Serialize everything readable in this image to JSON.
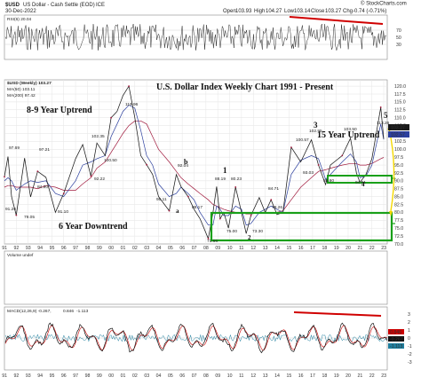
{
  "header": {
    "symbol": "$USD",
    "symbol_desc": "US Dollar - Cash Settle (EOD)",
    "exchange": "ICE",
    "date": "30-Dec-2022",
    "open_label": "Open",
    "open_value": "103.93",
    "high_label": "High",
    "high_value": "104.27",
    "low_label": "Low",
    "low_value": "103.14",
    "close_label": "Close",
    "close_value": "103.27",
    "chg_label": "Chg",
    "chg_value": "-0.74 (-0.71%)",
    "watermark": "© StockCharts.com"
  },
  "rsi_panel": {
    "legend": "RSI(6) 20.04",
    "levels": [
      "70",
      "50",
      "30"
    ]
  },
  "price_panel": {
    "legend_symbol": "$USD (Weekly) 103.27",
    "legend_ma50": "MA(50) 103.11",
    "legend_ma200": "MA(200) 97.42",
    "title": "U.S. Dollar Index Weekly Chart 1991 - Present",
    "annotations": {
      "uptrend1": "8-9 Year Uptrend",
      "downtrend": "6 Year Downtrend",
      "uptrend2": "15 Year Uptrend",
      "wave_b": "b",
      "wave_a": "a",
      "wave_1": "1",
      "wave_2": "2",
      "wave_3": "3",
      "wave_4": "4",
      "wave_5": "5"
    },
    "price_labels": [
      "97.69",
      "79.05",
      "91.26",
      "97.21",
      "84.90",
      "91.10",
      "92.22",
      "102.35",
      "100.50",
      "119.96",
      "95.11",
      "92.04",
      "88.17",
      "88.19",
      "80.23",
      "75.00",
      "71.66",
      "73.30",
      "84.71",
      "79.26",
      "100.57",
      "102.95",
      "93.03",
      "103.50",
      "94.61",
      "88.80",
      "113.26"
    ],
    "right_axis": [
      "120.0",
      "117.5",
      "115.0",
      "112.5",
      "110.0",
      "107.5",
      "105.0",
      "102.5",
      "100.0",
      "97.5",
      "95.0",
      "92.5",
      "90.0",
      "87.5",
      "85.0",
      "82.5",
      "80.0",
      "77.5",
      "75.0",
      "72.5",
      "70.0"
    ],
    "right_tags": [
      "103.27",
      "102.57"
    ]
  },
  "volume_panel": {
    "legend": "Volume undef"
  },
  "macd_panel": {
    "legend": "MACD(12,26,9) -0.267,",
    "signal": "0.846",
    "hist": "-1.113",
    "right_axis": [
      "3",
      "2",
      "1",
      "0",
      "-1",
      "-2",
      "-3"
    ],
    "right_tags": [
      "0.846",
      "-0.267",
      "-1.113"
    ]
  },
  "x_axis": [
    "91",
    "92",
    "93",
    "94",
    "95",
    "96",
    "97",
    "98",
    "99",
    "00",
    "01",
    "02",
    "03",
    "04",
    "05",
    "06",
    "07",
    "08",
    "09",
    "10",
    "11",
    "12",
    "13",
    "14",
    "15",
    "16",
    "17",
    "18",
    "19",
    "20",
    "21",
    "22",
    "23"
  ],
  "chart_data": {
    "type": "line",
    "title": "U.S. Dollar Index Weekly Chart 1991 - Present",
    "xlabel": "",
    "ylabel": "",
    "ylim": [
      70,
      122
    ],
    "x": [
      1991.0,
      1991.3,
      1991.6,
      1992.0,
      1992.7,
      1993.2,
      1993.8,
      1994.5,
      1995.3,
      1996.0,
      1997.0,
      1997.6,
      1998.3,
      1998.8,
      1999.5,
      2000.0,
      2000.5,
      2001.0,
      2001.5,
      2002.0,
      2002.5,
      2003.0,
      2003.5,
      2004.0,
      2004.9,
      2005.5,
      2005.9,
      2006.5,
      2007.0,
      2007.5,
      2008.2,
      2008.6,
      2008.9,
      2009.2,
      2009.5,
      2009.9,
      2010.5,
      2011.0,
      2011.4,
      2011.8,
      2012.5,
      2013.0,
      2013.5,
      2014.0,
      2014.5,
      2015.2,
      2016.0,
      2016.9,
      2017.5,
      2018.1,
      2018.5,
      2019.5,
      2020.2,
      2020.7,
      2021.0,
      2021.5,
      2022.0,
      2022.75,
      2023.0
    ],
    "series": [
      {
        "name": "$USD (Weekly) 103.27",
        "values": [
          91.3,
          97.7,
          85.0,
          79.1,
          97.2,
          84.9,
          93.0,
          91.1,
          80.0,
          86.0,
          97.0,
          101.5,
          91.5,
          102.0,
          98.0,
          110.0,
          112.0,
          117.0,
          120.0,
          110.0,
          98.0,
          95.1,
          92.0,
          85.0,
          80.5,
          92.0,
          88.2,
          85.0,
          81.0,
          78.0,
          71.7,
          80.0,
          88.2,
          78.0,
          80.0,
          75.0,
          88.0,
          80.0,
          73.3,
          79.0,
          84.7,
          80.0,
          84.0,
          79.3,
          80.0,
          100.6,
          96.0,
          103.0,
          95.0,
          88.8,
          95.0,
          98.0,
          103.5,
          92.5,
          89.5,
          92.0,
          97.0,
          113.3,
          103.3
        ]
      },
      {
        "name": "MA(50) 103.11",
        "values": [
          90.0,
          91.0,
          90.0,
          87.0,
          89.0,
          90.0,
          89.5,
          90.0,
          86.0,
          85.0,
          90.0,
          95.0,
          96.0,
          97.0,
          98.0,
          104.0,
          108.0,
          112.0,
          114.0,
          113.0,
          106.0,
          98.0,
          95.0,
          89.0,
          85.0,
          86.0,
          88.0,
          86.0,
          84.0,
          80.0,
          76.0,
          76.0,
          82.0,
          81.0,
          79.0,
          79.0,
          82.0,
          81.0,
          76.0,
          76.5,
          80.0,
          81.0,
          82.0,
          81.0,
          80.0,
          92.0,
          96.5,
          98.0,
          97.0,
          90.5,
          92.0,
          96.0,
          98.5,
          96.0,
          91.0,
          91.5,
          95.0,
          108.0,
          103.1
        ]
      },
      {
        "name": "MA(200) 97.42",
        "values": [
          88.0,
          88.5,
          88.5,
          88.0,
          88.0,
          88.0,
          87.5,
          88.5,
          88.0,
          87.0,
          87.0,
          89.0,
          91.0,
          94.0,
          96.0,
          99.0,
          102.0,
          105.0,
          107.5,
          109.0,
          109.0,
          108.0,
          104.0,
          100.0,
          96.0,
          93.0,
          91.0,
          89.0,
          87.5,
          86.0,
          84.0,
          82.5,
          82.0,
          81.5,
          81.0,
          80.5,
          80.0,
          80.0,
          79.5,
          79.5,
          80.0,
          80.0,
          80.0,
          80.0,
          80.5,
          84.0,
          88.0,
          91.0,
          93.0,
          93.5,
          94.0,
          95.0,
          95.5,
          95.5,
          95.0,
          95.0,
          95.5,
          97.0,
          97.4
        ]
      }
    ]
  },
  "colors": {
    "price": "#1a1a1a",
    "ma50": "#2b3f9e",
    "ma200": "#a0193c",
    "redline": "#d00000",
    "green": "#19a019",
    "yellow": "#f4d800",
    "grid": "#c9c9c9",
    "macd_signal": "#cc0000",
    "macd_hist": "#1f7f9f"
  }
}
